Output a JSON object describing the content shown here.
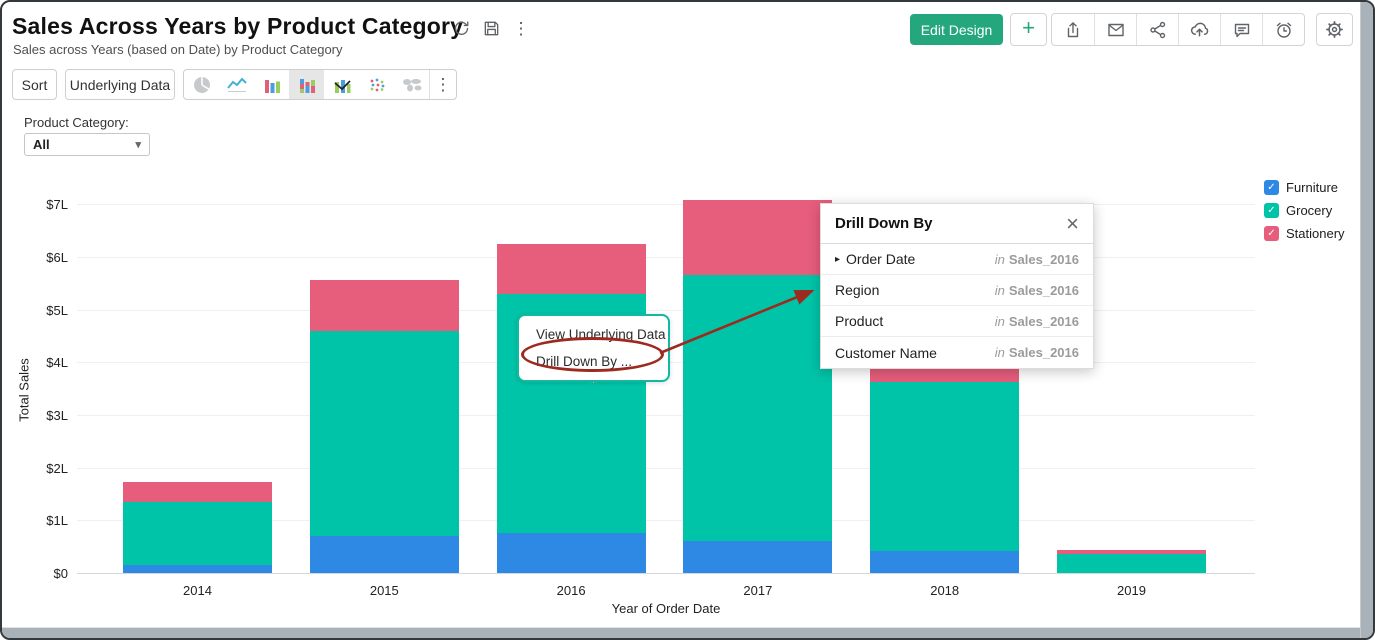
{
  "header": {
    "title": "Sales Across Years by Product Category",
    "subtitle": "Sales across Years (based on Date) by Product Category",
    "edit_design_label": "Edit Design",
    "title_icon_names": [
      "refresh-icon",
      "save-icon",
      "kebab-icon"
    ],
    "action_icon_names": [
      "add-icon",
      "export-icon",
      "email-icon",
      "share-icon",
      "publish-cloud-icon",
      "comment-icon",
      "alert-clock-icon",
      "settings-gear-icon"
    ]
  },
  "toolbar": {
    "sort_label": "Sort",
    "underlying_data_label": "Underlying Data",
    "chart_types": [
      {
        "name": "pie",
        "selected": false
      },
      {
        "name": "line",
        "selected": false
      },
      {
        "name": "bar",
        "selected": false
      },
      {
        "name": "stacked-bar",
        "selected": true
      },
      {
        "name": "combo",
        "selected": false
      },
      {
        "name": "scatter",
        "selected": false
      },
      {
        "name": "map",
        "selected": false
      },
      {
        "name": "more",
        "selected": false
      }
    ]
  },
  "filter": {
    "label": "Product Category:",
    "value": "All"
  },
  "legend": [
    {
      "label": "Furniture",
      "color": "#2e89e5"
    },
    {
      "label": "Grocery",
      "color": "#00c4a8"
    },
    {
      "label": "Stationery",
      "color": "#e75d7c"
    }
  ],
  "context_menu": {
    "items": [
      "View Underlying Data",
      "Drill Down By ..."
    ]
  },
  "drilldown_popup": {
    "title": "Drill Down By",
    "items": [
      {
        "label": "Order Date",
        "in": "in",
        "source": "Sales_2016",
        "expandable": true
      },
      {
        "label": "Region",
        "in": "in",
        "source": "Sales_2016",
        "expandable": false
      },
      {
        "label": "Product",
        "in": "in",
        "source": "Sales_2016",
        "expandable": false
      },
      {
        "label": "Customer Name",
        "in": "in",
        "source": "Sales_2016",
        "expandable": false
      }
    ]
  },
  "chart_data": {
    "type": "bar",
    "stacked": true,
    "title": "Sales Across Years by Product Category",
    "categories": [
      "2014",
      "2015",
      "2016",
      "2017",
      "2018",
      "2019"
    ],
    "series": [
      {
        "name": "Furniture",
        "color": "#2e89e5",
        "values": [
          0.15,
          0.7,
          0.76,
          0.61,
          0.42,
          0
        ]
      },
      {
        "name": "Grocery",
        "color": "#00c4a8",
        "values": [
          1.2,
          3.89,
          4.53,
          5.04,
          3.2,
          0.36
        ]
      },
      {
        "name": "Stationery",
        "color": "#e75d7c",
        "values": [
          0.38,
          0.97,
          0.95,
          1.42,
          0.25,
          0.08
        ]
      }
    ],
    "totals": [
      1.73,
      5.56,
      6.24,
      7.07,
      3.87,
      0.44
    ],
    "xlabel": "Year of Order Date",
    "ylabel": "Total Sales",
    "y_ticks": [
      "$7L",
      "$6L",
      "$5L",
      "$4L",
      "$3L",
      "$2L",
      "$1L",
      "$0"
    ],
    "y_tick_values": [
      7,
      6,
      5,
      4,
      3,
      2,
      1,
      0
    ],
    "ylim": [
      0,
      7.28
    ],
    "grid": true,
    "legend_position": "right"
  },
  "icons": {
    "check": "✓",
    "caret_down": "▾",
    "kebab": "⋮",
    "close": "×",
    "expand_arrow": "▸",
    "plus": "+"
  },
  "colors": {
    "accent_green": "#25a77e",
    "annotation_red": "#9c2a1f",
    "menu_border_teal": "#10b9a0"
  }
}
